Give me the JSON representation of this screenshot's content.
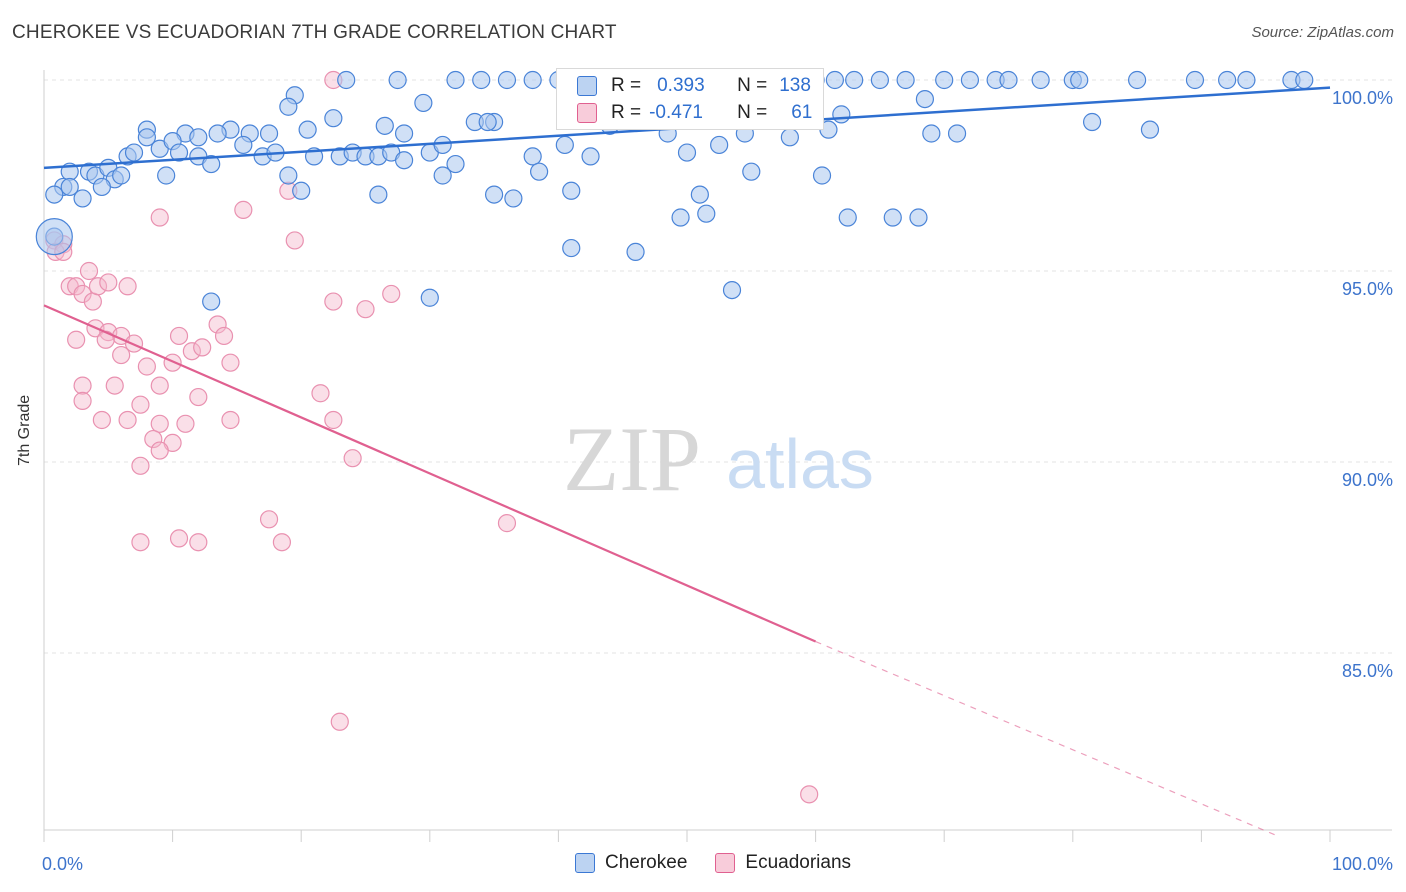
{
  "title": "CHEROKEE VS ECUADORIAN 7TH GRADE CORRELATION CHART",
  "source": "Source: ZipAtlas.com",
  "watermark": {
    "zip": "ZIP",
    "atlas": "atlas"
  },
  "colors": {
    "blue": "#3b78d4",
    "blue_fill": "#a9c6ee",
    "pink": "#e06090",
    "pink_fill": "#f4b8cc",
    "value_text": "#2f6fcf"
  },
  "legend": {
    "r_label": "R =",
    "n_label": "N =",
    "rows": [
      {
        "r": "0.393",
        "n": "138"
      },
      {
        "r": "-0.471",
        "n": "61"
      }
    ]
  },
  "chart_data": {
    "type": "scatter",
    "xlabel": "",
    "ylabel": "7th Grade",
    "xlim": [
      0,
      100
    ],
    "ylim": [
      80.3,
      100.5
    ],
    "x_tick_labels": [
      "0.0%",
      "100.0%"
    ],
    "y_ticks": [
      85,
      90,
      95,
      100
    ],
    "y_tick_labels": [
      "85.0%",
      "90.0%",
      "95.0%",
      "100.0%"
    ],
    "grid": true,
    "legend_position": "bottom-center",
    "series": [
      {
        "name": "Cherokee",
        "color": "#3b78d4",
        "trend": {
          "x0": 0,
          "y0": 97.7,
          "x1": 100,
          "y1": 99.8
        },
        "points": [
          [
            23.5,
            100
          ],
          [
            27.5,
            100
          ],
          [
            32,
            100
          ],
          [
            34,
            100
          ],
          [
            36,
            100
          ],
          [
            38,
            100
          ],
          [
            40,
            100
          ],
          [
            46,
            100
          ],
          [
            48,
            100
          ],
          [
            54.5,
            100
          ],
          [
            56,
            100
          ],
          [
            60,
            100
          ],
          [
            61.5,
            100
          ],
          [
            63,
            100
          ],
          [
            65,
            100
          ],
          [
            67,
            100
          ],
          [
            70,
            100
          ],
          [
            72,
            100
          ],
          [
            74,
            100
          ],
          [
            75,
            100
          ],
          [
            77.5,
            100
          ],
          [
            80,
            100
          ],
          [
            80.5,
            100
          ],
          [
            85,
            100
          ],
          [
            89.5,
            100
          ],
          [
            92,
            100
          ],
          [
            93.5,
            100
          ],
          [
            97,
            100
          ],
          [
            98,
            100
          ],
          [
            19.5,
            99.6
          ],
          [
            29.5,
            99.4
          ],
          [
            68.5,
            99.5
          ],
          [
            19,
            99.3
          ],
          [
            41.5,
            99.3
          ],
          [
            22.5,
            99.0
          ],
          [
            33.5,
            98.9
          ],
          [
            35,
            98.9
          ],
          [
            47,
            99.0
          ],
          [
            62,
            99.1
          ],
          [
            8,
            98.7
          ],
          [
            11,
            98.6
          ],
          [
            12,
            98.5
          ],
          [
            14.5,
            98.7
          ],
          [
            16,
            98.6
          ],
          [
            17.5,
            98.6
          ],
          [
            20.5,
            98.7
          ],
          [
            26.5,
            98.8
          ],
          [
            28,
            98.6
          ],
          [
            34.5,
            98.9
          ],
          [
            44,
            98.8
          ],
          [
            48.5,
            98.6
          ],
          [
            52.5,
            98.3
          ],
          [
            54.5,
            98.6
          ],
          [
            58,
            98.5
          ],
          [
            61,
            98.7
          ],
          [
            69,
            98.6
          ],
          [
            71,
            98.6
          ],
          [
            81.5,
            98.9
          ],
          [
            86,
            98.7
          ],
          [
            6.5,
            98.0
          ],
          [
            7,
            98.1
          ],
          [
            8,
            98.5
          ],
          [
            9,
            98.2
          ],
          [
            10,
            98.4
          ],
          [
            10.5,
            98.1
          ],
          [
            12,
            98.0
          ],
          [
            13.5,
            98.6
          ],
          [
            15.5,
            98.3
          ],
          [
            17,
            98.0
          ],
          [
            18,
            98.1
          ],
          [
            21,
            98.0
          ],
          [
            23,
            98.0
          ],
          [
            24,
            98.1
          ],
          [
            25,
            98.0
          ],
          [
            26,
            98.0
          ],
          [
            27,
            98.1
          ],
          [
            28,
            97.9
          ],
          [
            30,
            98.1
          ],
          [
            31,
            98.3
          ],
          [
            38,
            98.0
          ],
          [
            40.5,
            98.3
          ],
          [
            42.5,
            98.0
          ],
          [
            50,
            98.1
          ],
          [
            2,
            97.6
          ],
          [
            3.5,
            97.6
          ],
          [
            4,
            97.5
          ],
          [
            5,
            97.7
          ],
          [
            5.5,
            97.4
          ],
          [
            6,
            97.5
          ],
          [
            9.5,
            97.5
          ],
          [
            13,
            97.8
          ],
          [
            19,
            97.5
          ],
          [
            31,
            97.5
          ],
          [
            32,
            97.8
          ],
          [
            38.5,
            97.6
          ],
          [
            55,
            97.6
          ],
          [
            60.5,
            97.5
          ],
          [
            1.5,
            97.2
          ],
          [
            2,
            97.2
          ],
          [
            4.5,
            97.2
          ],
          [
            20,
            97.1
          ],
          [
            26,
            97.0
          ],
          [
            35,
            97.0
          ],
          [
            36.5,
            96.9
          ],
          [
            41,
            97.1
          ],
          [
            51,
            97.0
          ],
          [
            0.8,
            97.0
          ],
          [
            3,
            96.9
          ],
          [
            49.5,
            96.4
          ],
          [
            62.5,
            96.4
          ],
          [
            66,
            96.4
          ],
          [
            68,
            96.4
          ],
          [
            51.5,
            96.5
          ],
          [
            46,
            95.5
          ],
          [
            41,
            95.6
          ],
          [
            53.5,
            94.5
          ],
          [
            30,
            94.3
          ],
          [
            13,
            94.2
          ],
          [
            0.8,
            95.9
          ]
        ]
      },
      {
        "name": "Ecuadorians",
        "color": "#e06090",
        "trend": {
          "x0": 0,
          "y0": 94.1,
          "x1": 60,
          "y1": 85.3,
          "dash_x1": 96,
          "dash_y1": 80.2
        },
        "points": [
          [
            22.5,
            100
          ],
          [
            0.8,
            95.8
          ],
          [
            1.5,
            95.7
          ],
          [
            0.9,
            95.5
          ],
          [
            1.5,
            95.5
          ],
          [
            9,
            96.4
          ],
          [
            15.5,
            96.6
          ],
          [
            19.5,
            95.8
          ],
          [
            19,
            97.1
          ],
          [
            3.5,
            95.0
          ],
          [
            2,
            94.6
          ],
          [
            2.5,
            94.6
          ],
          [
            3,
            94.4
          ],
          [
            3.8,
            94.2
          ],
          [
            4.2,
            94.6
          ],
          [
            5,
            94.7
          ],
          [
            6.5,
            94.6
          ],
          [
            22.5,
            94.2
          ],
          [
            25,
            94.0
          ],
          [
            27,
            94.4
          ],
          [
            2.5,
            93.2
          ],
          [
            4,
            93.5
          ],
          [
            5,
            93.4
          ],
          [
            6,
            93.3
          ],
          [
            7,
            93.1
          ],
          [
            8,
            92.5
          ],
          [
            9,
            92.0
          ],
          [
            10.5,
            93.3
          ],
          [
            11.5,
            92.9
          ],
          [
            13.5,
            93.6
          ],
          [
            14,
            93.3
          ],
          [
            14.5,
            92.6
          ],
          [
            6,
            92.8
          ],
          [
            3,
            92.0
          ],
          [
            5.5,
            92.0
          ],
          [
            3,
            91.6
          ],
          [
            4.5,
            91.1
          ],
          [
            6.5,
            91.1
          ],
          [
            7.5,
            91.5
          ],
          [
            9,
            91.0
          ],
          [
            11,
            91.0
          ],
          [
            12,
            91.7
          ],
          [
            14.5,
            91.1
          ],
          [
            21.5,
            91.8
          ],
          [
            22.5,
            91.1
          ],
          [
            8.5,
            90.6
          ],
          [
            10,
            90.5
          ],
          [
            9,
            90.3
          ],
          [
            7.5,
            89.9
          ],
          [
            24,
            90.1
          ],
          [
            17.5,
            88.5
          ],
          [
            36,
            88.4
          ],
          [
            7.5,
            87.9
          ],
          [
            10.5,
            88.0
          ],
          [
            12,
            87.9
          ],
          [
            18.5,
            87.9
          ],
          [
            23,
            83.2
          ],
          [
            59.5,
            81.3
          ],
          [
            10,
            92.6
          ],
          [
            12.3,
            93.0
          ],
          [
            4.8,
            93.2
          ]
        ]
      }
    ]
  }
}
